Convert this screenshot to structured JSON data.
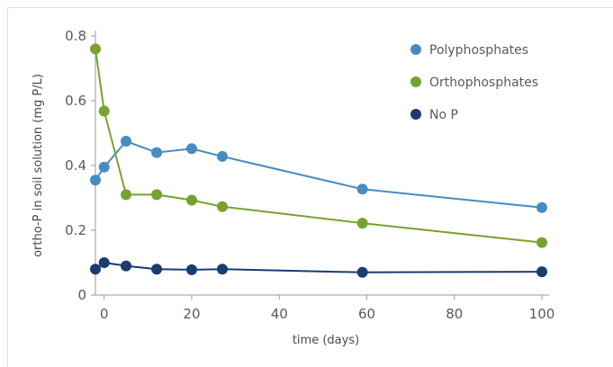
{
  "chart_data": {
    "type": "line",
    "title": "",
    "xlabel": "time (days)",
    "ylabel": "ortho-P in soil solution (mg P/L)",
    "xlim": [
      -2,
      100
    ],
    "ylim": [
      0,
      0.8
    ],
    "x_ticks": [
      0,
      20,
      40,
      60,
      80,
      100
    ],
    "y_ticks": [
      0,
      0.2,
      0.4,
      0.6,
      0.8
    ],
    "x_tick_labels": [
      "0",
      "20",
      "40",
      "60",
      "80",
      "100"
    ],
    "y_tick_labels": [
      "0",
      "0.2",
      "0.4",
      "0.6",
      "0.8"
    ],
    "grid": false,
    "legend_position": "top-right",
    "series": [
      {
        "name": "Polyphosphates",
        "color": "#4a8bbf",
        "x": [
          -2,
          0,
          5,
          12,
          20,
          27,
          59,
          100
        ],
        "y": [
          0.355,
          0.395,
          0.475,
          0.44,
          0.452,
          0.428,
          0.327,
          0.27
        ]
      },
      {
        "name": "Orthophosphates",
        "color": "#78a22f",
        "x": [
          -2,
          0,
          5,
          12,
          20,
          27,
          59,
          100
        ],
        "y": [
          0.76,
          0.568,
          0.31,
          0.31,
          0.293,
          0.273,
          0.222,
          0.162
        ]
      },
      {
        "name": "No P",
        "color": "#1a3c6e",
        "x": [
          -2,
          0,
          5,
          12,
          20,
          27,
          59,
          100
        ],
        "y": [
          0.08,
          0.1,
          0.09,
          0.08,
          0.078,
          0.08,
          0.07,
          0.072
        ]
      }
    ]
  }
}
